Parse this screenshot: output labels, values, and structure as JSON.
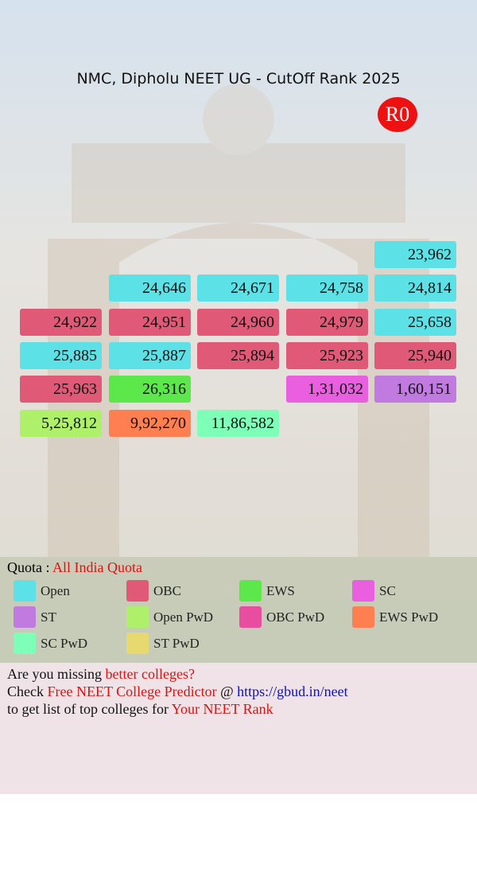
{
  "header": {
    "title": "NMC, Dipholu NEET UG - CutOff Rank 2025",
    "badge": "R0"
  },
  "grid": {
    "rows": [
      [
        null,
        null,
        null,
        null,
        {
          "text": "23,962",
          "color": "#5ce1e6"
        }
      ],
      [
        null,
        {
          "text": "24,646",
          "color": "#5ce1e6"
        },
        {
          "text": "24,671",
          "color": "#5ce1e6"
        },
        {
          "text": "24,758",
          "color": "#5ce1e6"
        },
        {
          "text": "24,814",
          "color": "#5ce1e6"
        }
      ],
      [
        {
          "text": "24,922",
          "color": "#e05a78"
        },
        {
          "text": "24,951",
          "color": "#e05a78"
        },
        {
          "text": "24,960",
          "color": "#e05a78"
        },
        {
          "text": "24,979",
          "color": "#e05a78"
        },
        {
          "text": "25,658",
          "color": "#5ce1e6"
        }
      ],
      [
        {
          "text": "25,885",
          "color": "#5ce1e6"
        },
        {
          "text": "25,887",
          "color": "#5ce1e6"
        },
        {
          "text": "25,894",
          "color": "#e05a78"
        },
        {
          "text": "25,923",
          "color": "#e05a78"
        },
        {
          "text": "25,940",
          "color": "#e05a78"
        }
      ],
      [
        {
          "text": "25,963",
          "color": "#e05a78"
        },
        {
          "text": "26,316",
          "color": "#5ce84a"
        },
        null,
        {
          "text": "1,31,032",
          "color": "#e95fe0"
        },
        {
          "text": "1,60,151",
          "color": "#c07ae0"
        }
      ],
      [
        {
          "text": "5,25,812",
          "color": "#aef06a"
        },
        {
          "text": "9,92,270",
          "color": "#ff7f50"
        },
        {
          "text": "11,86,582",
          "color": "#7dffb8"
        },
        null,
        null
      ]
    ]
  },
  "quota": {
    "label": "Quota : ",
    "value": "All India Quota",
    "value_color": "#e01010"
  },
  "legend": [
    {
      "name": "Open",
      "color": "#5ce1e6"
    },
    {
      "name": "OBC",
      "color": "#e05a78"
    },
    {
      "name": "EWS",
      "color": "#5ce84a"
    },
    {
      "name": "SC",
      "color": "#e95fe0"
    },
    {
      "name": "ST",
      "color": "#c07ae0"
    },
    {
      "name": "Open PwD",
      "color": "#aef06a"
    },
    {
      "name": "OBC PwD",
      "color": "#e84da0"
    },
    {
      "name": "EWS PwD",
      "color": "#ff7f50"
    },
    {
      "name": "SC PwD",
      "color": "#7dffb8"
    },
    {
      "name": "ST PwD",
      "color": "#e8d870"
    }
  ],
  "footer": {
    "lines": [
      [
        {
          "text": "Are you missing ",
          "color": "#111111"
        },
        {
          "text": "better colleges?",
          "color": "#e01010"
        }
      ],
      [
        {
          "text": "Check ",
          "color": "#111111"
        },
        {
          "text": "Free NEET College Predictor",
          "color": "#e01010"
        },
        {
          "text": " @ ",
          "color": "#111111"
        },
        {
          "text": "https://gbud.in/neet",
          "color": "#1010c0"
        }
      ],
      [
        {
          "text": "to get list of top colleges for ",
          "color": "#111111"
        },
        {
          "text": "Your NEET Rank",
          "color": "#e01010"
        }
      ]
    ]
  }
}
